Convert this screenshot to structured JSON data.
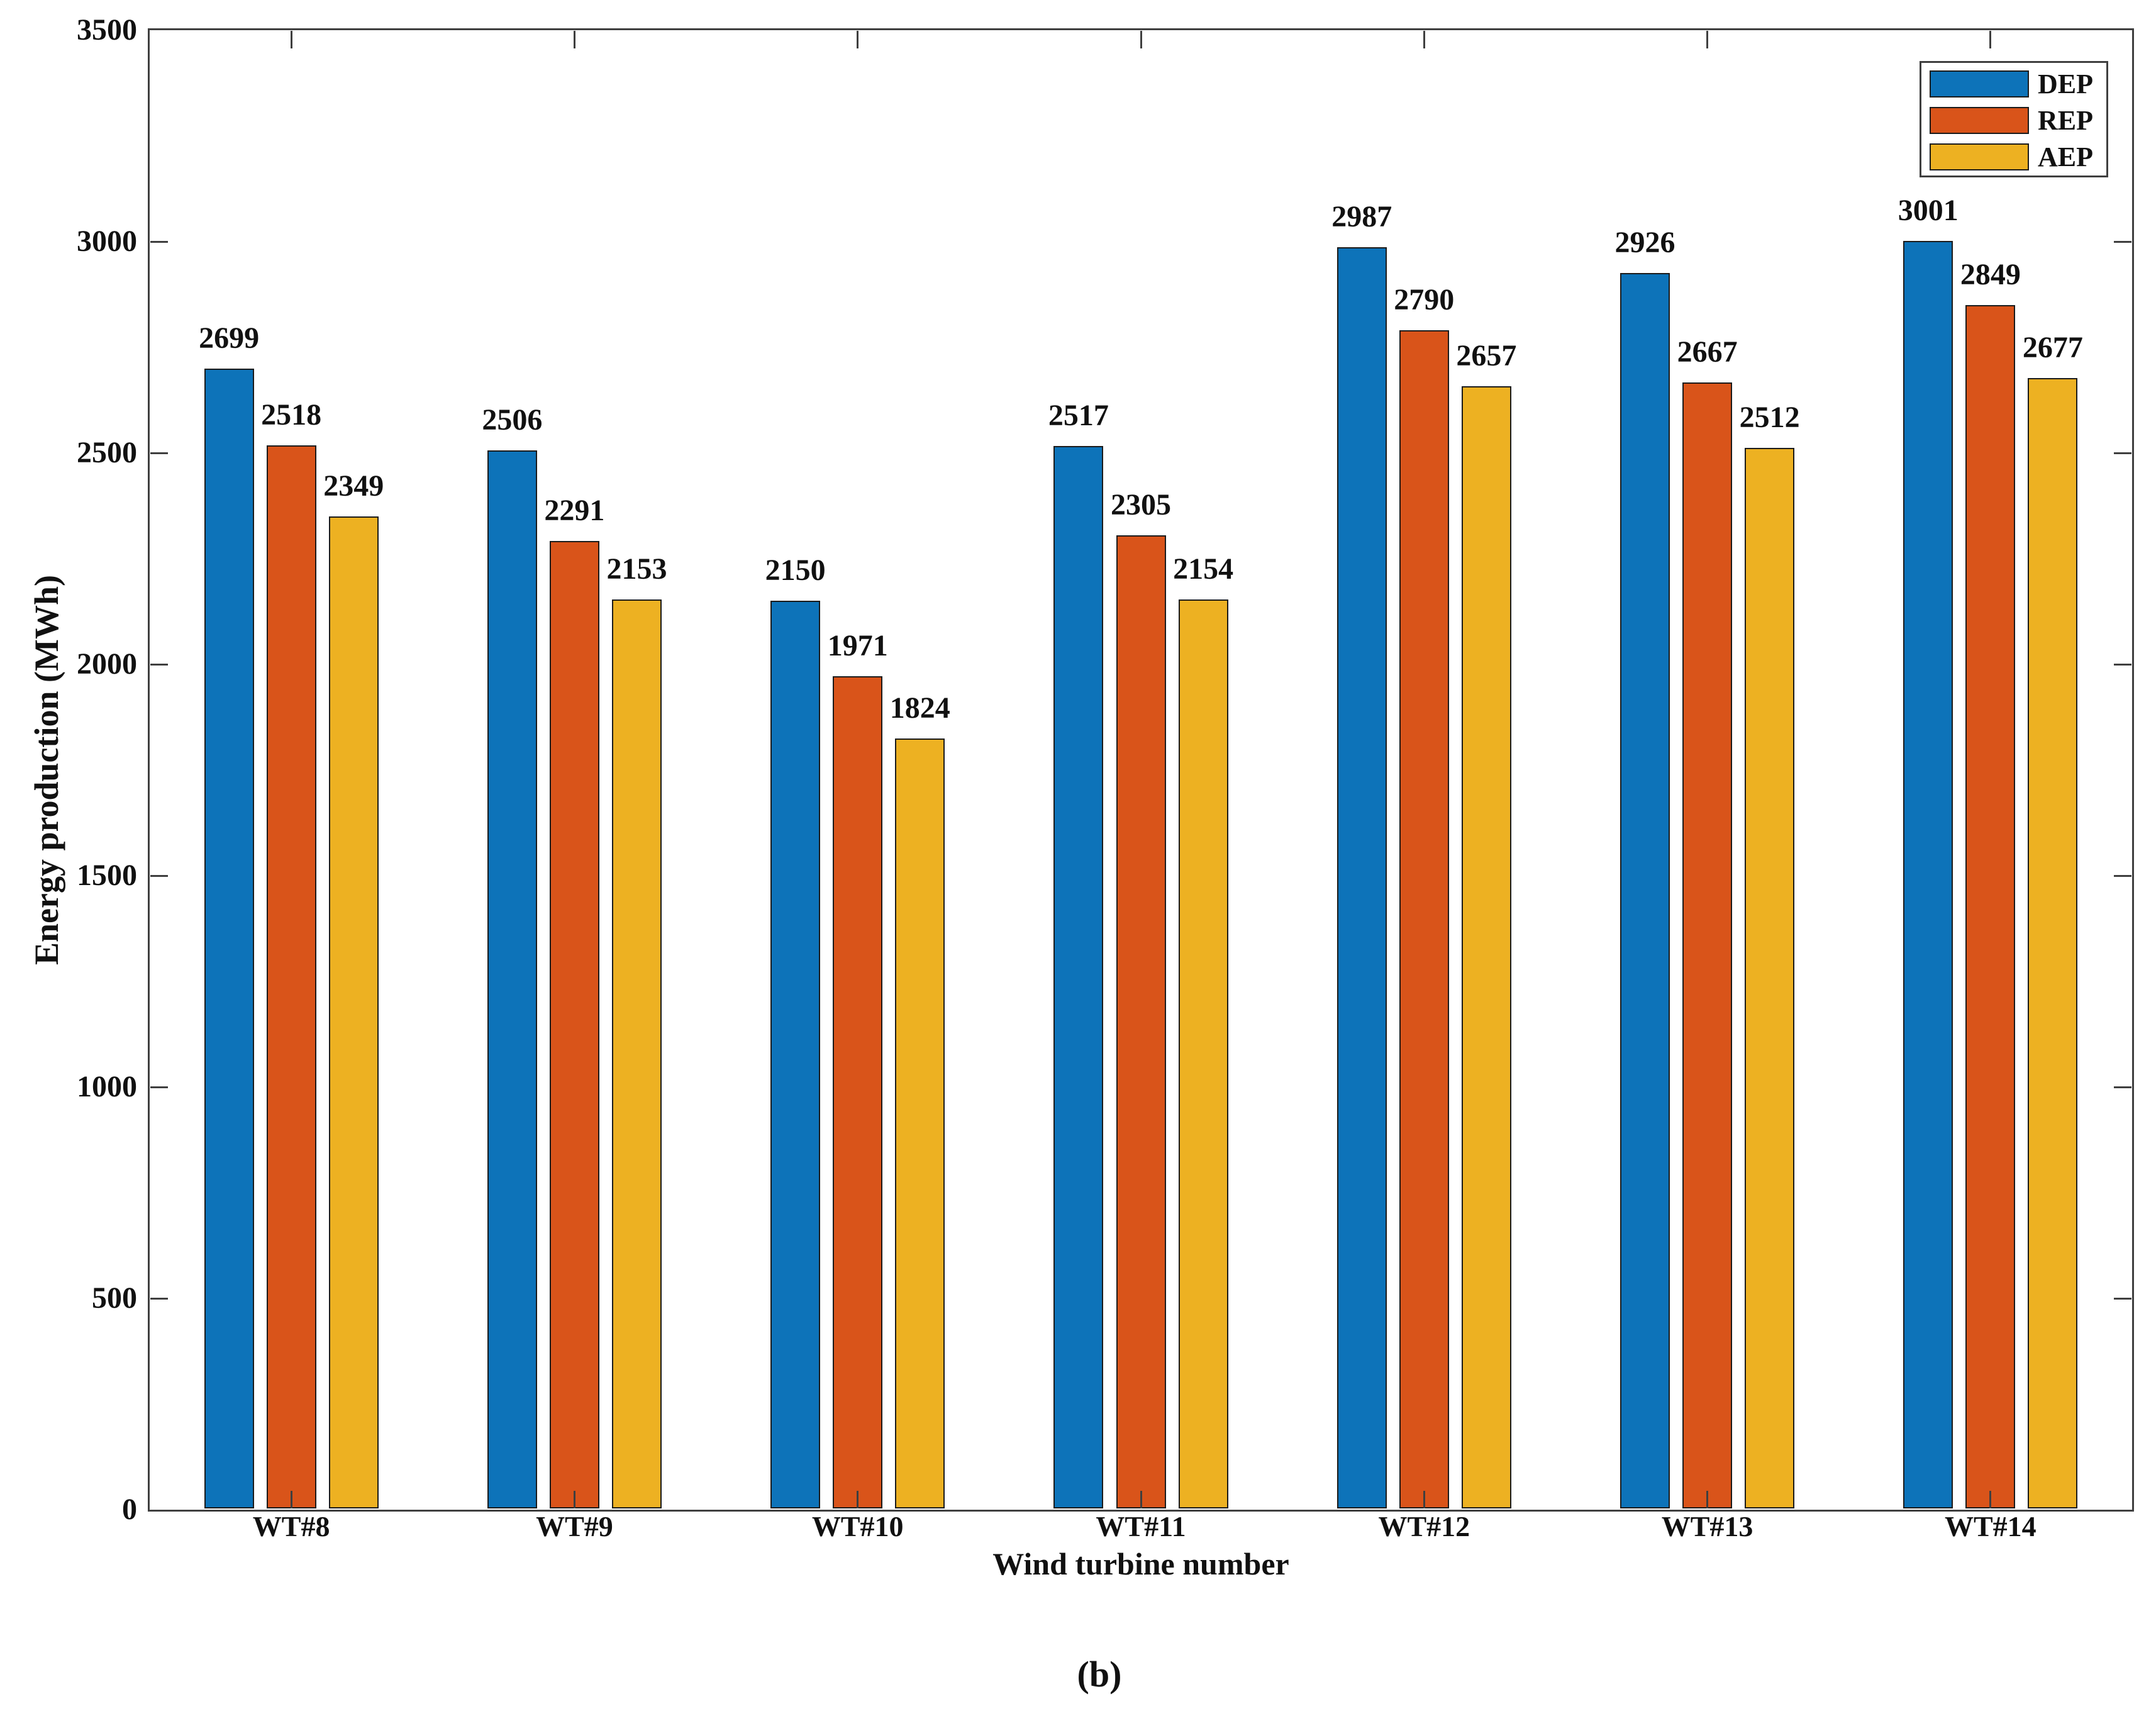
{
  "figure": {
    "caption": "(b)"
  },
  "chart_data": {
    "type": "bar",
    "title": "",
    "xlabel": "Wind turbine number",
    "ylabel": "Energy production (MWh)",
    "categories": [
      "WT#8",
      "WT#9",
      "WT#10",
      "WT#11",
      "WT#12",
      "WT#13",
      "WT#14"
    ],
    "series": [
      {
        "name": "DEP",
        "color": "#0d73b9",
        "values": [
          2699,
          2506,
          2150,
          2517,
          2987,
          2926,
          3001
        ]
      },
      {
        "name": "REP",
        "color": "#d9541a",
        "values": [
          2518,
          2291,
          1971,
          2305,
          2790,
          2667,
          2849
        ]
      },
      {
        "name": "AEP",
        "color": "#edb122",
        "values": [
          2349,
          2153,
          1824,
          2154,
          2657,
          2512,
          2677
        ]
      }
    ],
    "ylim": [
      0,
      3500
    ],
    "y_ticks": [
      0,
      500,
      1000,
      1500,
      2000,
      2500,
      3000,
      3500
    ],
    "bar_value_labels": true,
    "legend_position": "top-right",
    "grid": false
  },
  "colors": {
    "background": "#ffffff",
    "axis": "#3f3f3f",
    "bar_edge": "#1b1b1b",
    "text": "#111111"
  }
}
